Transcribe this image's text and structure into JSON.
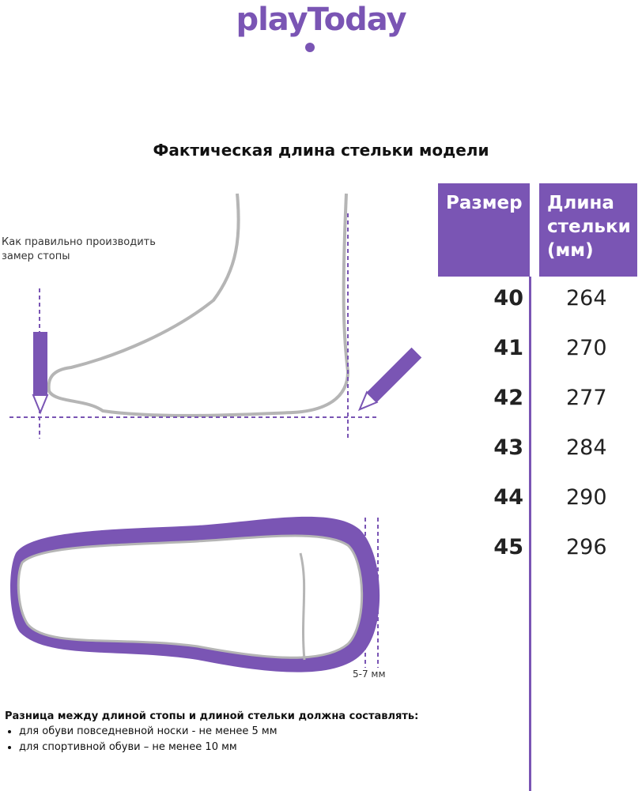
{
  "logo": "playToday",
  "title": "Фактическая длина стельки модели",
  "table": {
    "headers": [
      "Размер",
      "Длина стельки (мм)"
    ],
    "rows": [
      {
        "size": "40",
        "length": "264"
      },
      {
        "size": "41",
        "length": "270"
      },
      {
        "size": "42",
        "length": "277"
      },
      {
        "size": "43",
        "length": "284"
      },
      {
        "size": "44",
        "length": "290"
      },
      {
        "size": "45",
        "length": "296"
      }
    ]
  },
  "measure_note": "Как правильно производить замер стопы",
  "gap_label": "5-7 мм",
  "footer": {
    "heading": "Разница между длиной стопы и длиной стельки должна составлять:",
    "items": [
      "для обуви повседневной носки -  не менее 5 мм",
      "для спортивной обуви – не менее 10 мм"
    ]
  },
  "colors": {
    "accent": "#7a55b4",
    "outline": "#b5b5b5"
  }
}
